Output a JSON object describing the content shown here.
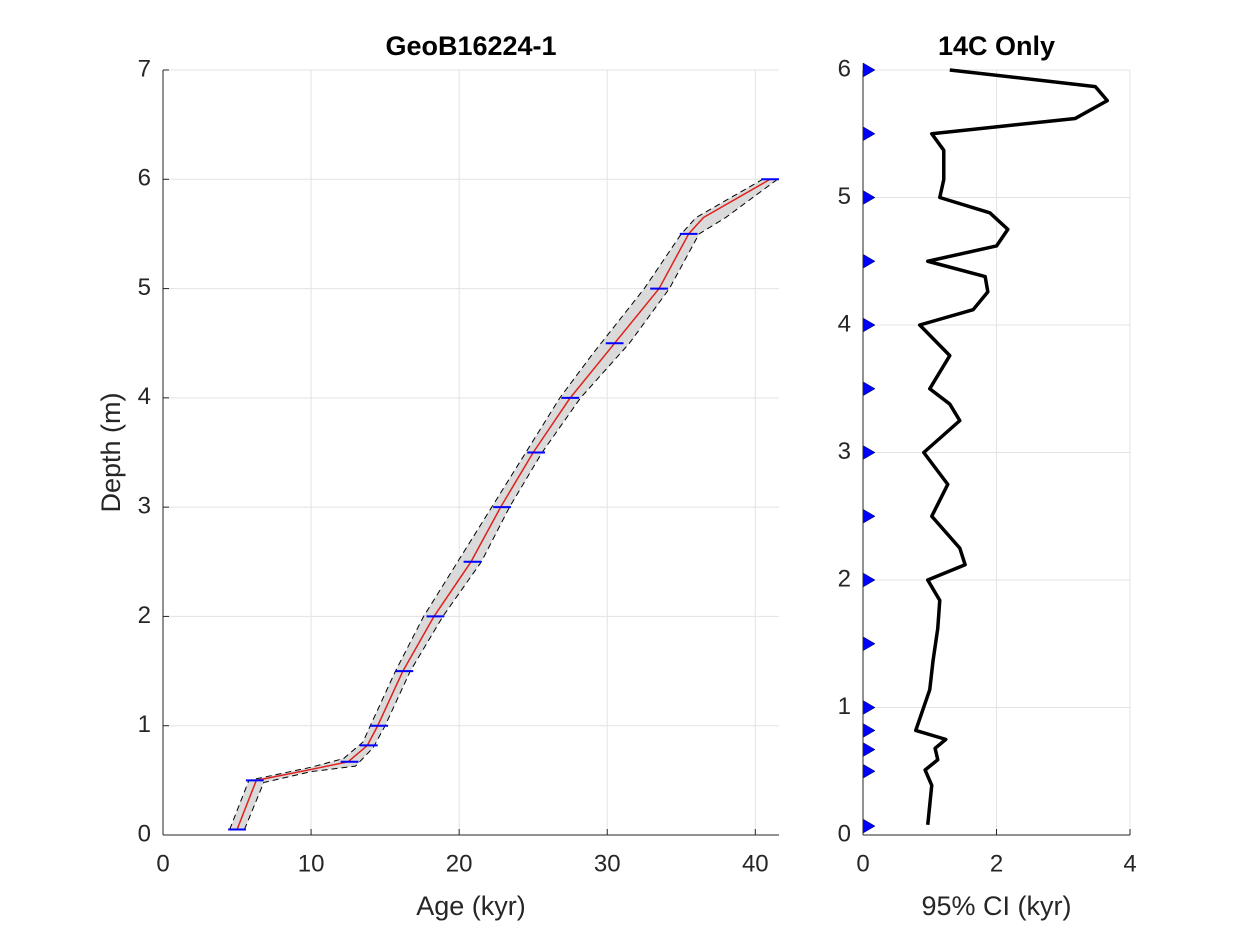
{
  "chart_data": [
    {
      "type": "age-depth",
      "title": "GeoB16224-1",
      "x_label": "Age (kyr)",
      "y_label": "Depth (m)",
      "xlim": [
        0,
        41.6
      ],
      "ylim": [
        0,
        7
      ],
      "xticks": [
        0,
        10,
        20,
        30,
        40
      ],
      "yticks": [
        0,
        1,
        2,
        3,
        4,
        5,
        6,
        7
      ],
      "grid": true,
      "bounds": {
        "color": "#000000",
        "fill": "#d4d4d4",
        "lower": {
          "x": [
            4.5,
            5.8,
            10,
            12.2,
            13.5,
            14.0,
            15.7,
            17.6,
            19.9,
            22.2,
            24.5,
            26.8,
            29.0,
            32.5,
            35.0,
            36.0,
            40.5
          ],
          "y": [
            0.05,
            0.5,
            0.62,
            0.7,
            0.85,
            1.0,
            1.5,
            2.0,
            2.5,
            3.0,
            3.5,
            4.0,
            4.4,
            5.0,
            5.5,
            5.65,
            6.0
          ]
        },
        "upper": {
          "x": [
            5.5,
            6.8,
            10,
            13.0,
            14.2,
            15.0,
            16.7,
            18.9,
            21.5,
            23.4,
            25.6,
            28.2,
            31.5,
            34.2,
            36.2,
            38.0,
            41.5
          ],
          "y": [
            0.05,
            0.48,
            0.58,
            0.63,
            0.8,
            1.0,
            1.5,
            2.0,
            2.5,
            3.0,
            3.5,
            4.0,
            4.5,
            5.0,
            5.5,
            5.65,
            6.0
          ]
        }
      },
      "series": [
        {
          "color": "#e0201b",
          "x": [
            5.0,
            6.3,
            10,
            12.5,
            13.8,
            14.5,
            16.2,
            18.3,
            20.8,
            22.8,
            25.0,
            27.5,
            30.5,
            33.5,
            35.5,
            36.5,
            41.0
          ],
          "y": [
            0.05,
            0.5,
            0.6,
            0.67,
            0.82,
            1.0,
            1.5,
            2.0,
            2.5,
            3.0,
            3.5,
            4.0,
            4.5,
            5.0,
            5.5,
            5.65,
            6.0
          ]
        }
      ],
      "dates": {
        "color": "#0000ff",
        "age": [
          5.0,
          6.2,
          12.6,
          13.9,
          14.6,
          16.3,
          18.4,
          20.9,
          22.9,
          25.2,
          27.5,
          30.5,
          33.5,
          35.5,
          41.0
        ],
        "depth": [
          0.05,
          0.5,
          0.67,
          0.82,
          1.0,
          1.5,
          2.0,
          2.5,
          3.0,
          3.5,
          4.0,
          4.5,
          5.0,
          5.5,
          6.0
        ],
        "error": [
          0.6,
          0.6,
          0.6,
          0.6,
          0.6,
          0.6,
          0.6,
          0.6,
          0.6,
          0.6,
          0.6,
          0.6,
          0.6,
          0.6,
          0.6
        ]
      }
    },
    {
      "type": "profile",
      "title": "14C Only",
      "x_label": "95% CI (kyr)",
      "xlim": [
        0,
        4
      ],
      "ylim": [
        0,
        6
      ],
      "xticks": [
        0,
        2,
        4
      ],
      "yticks": [
        0,
        1,
        2,
        3,
        4,
        5,
        6
      ],
      "grid": true,
      "series": [
        {
          "color": "#000000",
          "x": [
            0.97,
            1.03,
            0.93,
            1.12,
            1.08,
            1.24,
            0.79,
            1.0,
            1.05,
            1.12,
            1.15,
            0.97,
            1.53,
            1.45,
            1.03,
            1.27,
            0.91,
            1.45,
            1.3,
            1.0,
            1.3,
            0.85,
            1.65,
            1.87,
            1.83,
            0.97,
            2.0,
            2.17,
            1.9,
            1.15,
            1.21,
            1.21,
            1.03,
            3.18,
            3.66,
            3.48,
            1.3
          ],
          "y": [
            0.08,
            0.39,
            0.51,
            0.59,
            0.68,
            0.75,
            0.82,
            1.14,
            1.37,
            1.62,
            1.84,
            2.0,
            2.12,
            2.25,
            2.5,
            2.75,
            3.0,
            3.25,
            3.38,
            3.5,
            3.76,
            4.0,
            4.12,
            4.26,
            4.38,
            4.5,
            4.62,
            4.75,
            4.88,
            5.0,
            5.14,
            5.37,
            5.5,
            5.62,
            5.76,
            5.87,
            6.0
          ]
        }
      ],
      "markers": {
        "color": "#0000ff",
        "x": [
          0,
          0,
          0,
          0,
          0,
          0,
          0,
          0,
          0,
          0,
          0,
          0,
          0,
          0,
          0
        ],
        "y": [
          0.07,
          0.5,
          0.67,
          0.82,
          1.0,
          1.5,
          2.0,
          2.5,
          3.0,
          3.5,
          4.0,
          4.5,
          5.0,
          5.5,
          6.0
        ]
      }
    }
  ]
}
